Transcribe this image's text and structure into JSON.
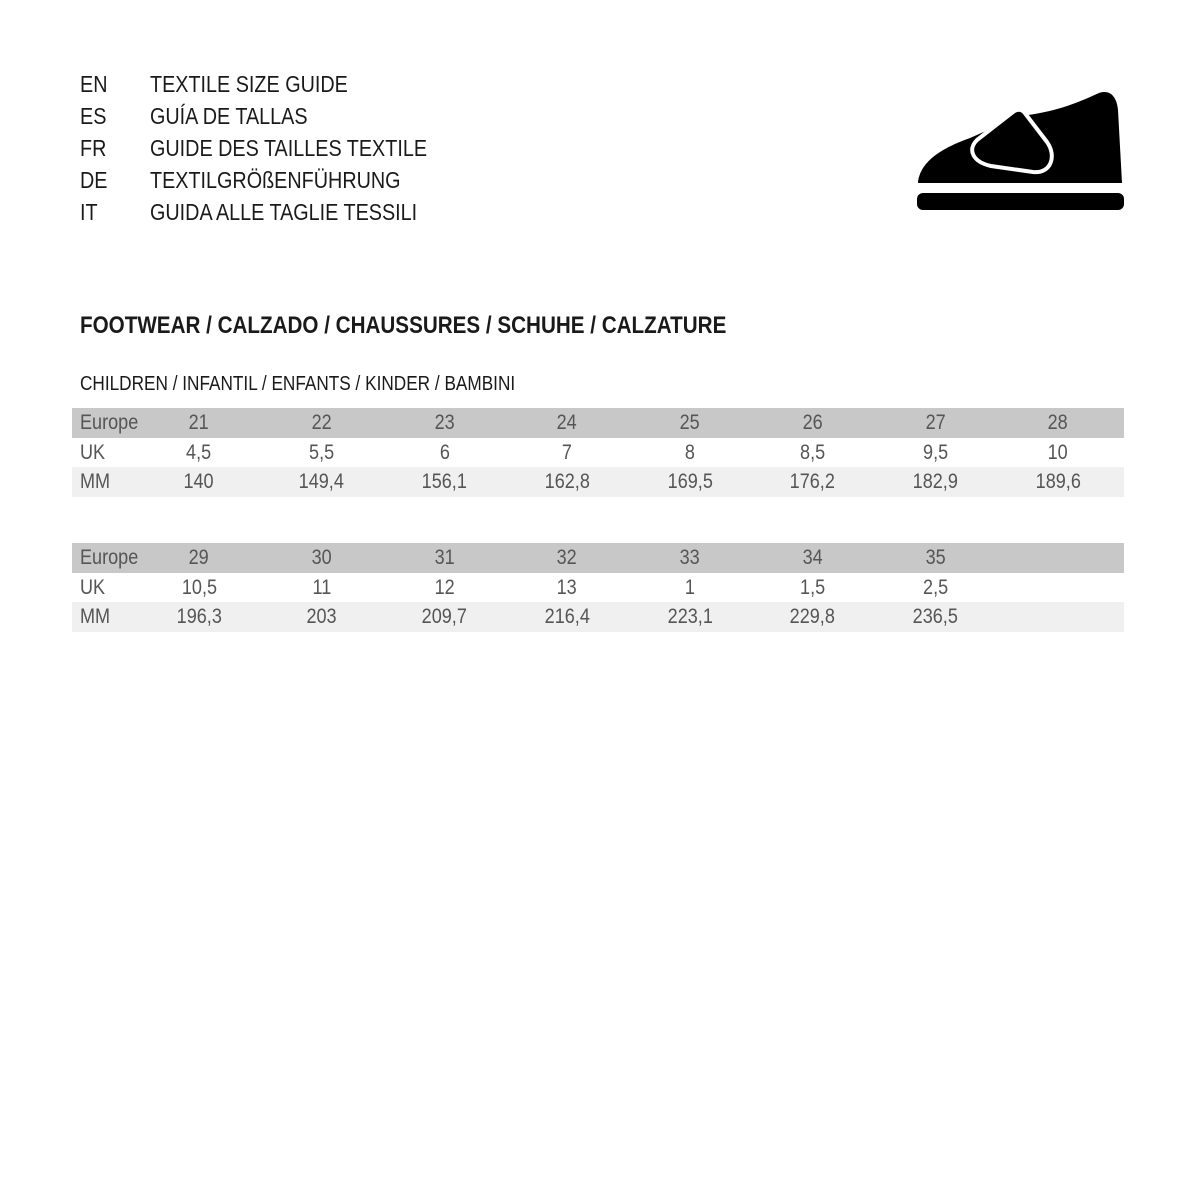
{
  "languages": [
    {
      "code": "EN",
      "title": "TEXTILE SIZE GUIDE"
    },
    {
      "code": "ES",
      "title": "GUÍA DE TALLAS"
    },
    {
      "code": "FR",
      "title": "GUIDE DES TAILLES TEXTILE"
    },
    {
      "code": "DE",
      "title": "TEXTILGRÖßENFÜHRUNG"
    },
    {
      "code": "IT",
      "title": "GUIDA ALLE TAGLIE TESSILI"
    }
  ],
  "icon": "children-shoe-icon",
  "section_title": "FOOTWEAR / CALZADO / CHAUSSURES / SCHUHE / CALZATURE",
  "subsection_title": "CHILDREN / INFANTIL / ENFANTS / KINDER / BAMBINI",
  "tables": [
    {
      "rows": [
        {
          "label": "Europe",
          "values": [
            "21",
            "22",
            "23",
            "24",
            "25",
            "26",
            "27",
            "28"
          ]
        },
        {
          "label": "UK",
          "values": [
            "4,5",
            "5,5",
            "6",
            "7",
            "8",
            "8,5",
            "9,5",
            "10"
          ]
        },
        {
          "label": "MM",
          "values": [
            "140",
            "149,4",
            "156,1",
            "162,8",
            "169,5",
            "176,2",
            "182,9",
            "189,6"
          ]
        }
      ]
    },
    {
      "rows": [
        {
          "label": "Europe",
          "values": [
            "29",
            "30",
            "31",
            "32",
            "33",
            "34",
            "35"
          ]
        },
        {
          "label": "UK",
          "values": [
            "10,5",
            "11",
            "12",
            "13",
            "1",
            "1,5",
            "2,5"
          ]
        },
        {
          "label": "MM",
          "values": [
            "196,3",
            "203",
            "209,7",
            "216,4",
            "223,1",
            "229,8",
            "236,5"
          ]
        }
      ]
    }
  ],
  "colors": {
    "header_row": "#c8c8c8",
    "alt_row": "#f0f0f0",
    "text": "#555555"
  }
}
